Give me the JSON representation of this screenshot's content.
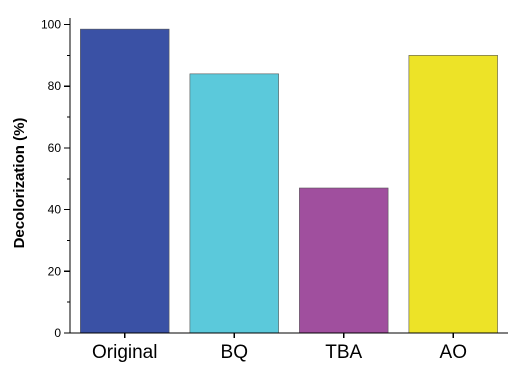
{
  "chart_data": {
    "type": "bar",
    "categories": [
      "Original",
      "BQ",
      "TBA",
      "AO"
    ],
    "values": [
      98.5,
      84,
      47,
      90
    ],
    "colors": [
      "#3a51a5",
      "#5bc9db",
      "#a04f9e",
      "#ede327"
    ],
    "title": "",
    "xlabel": "",
    "ylabel": "Decolorization (%)",
    "ylim": [
      0,
      100
    ],
    "yticks": [
      0,
      20,
      40,
      60,
      80,
      100
    ],
    "grid": false,
    "legend": "none"
  }
}
